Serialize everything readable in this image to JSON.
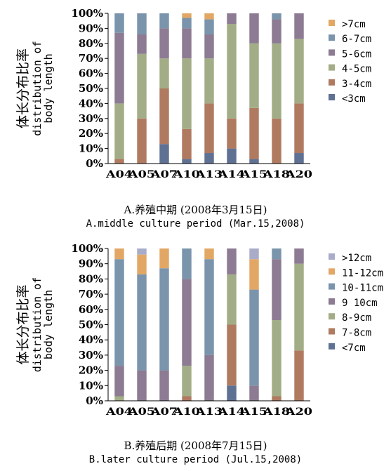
{
  "chart_data": [
    {
      "type": "bar",
      "stacked": true,
      "ylabel_cn": "体长分布比率",
      "ylabel_en_line1": "distribution of",
      "ylabel_en_line2": "body length",
      "yticks": [
        "0%",
        "10%",
        "20%",
        "30%",
        "40%",
        "50%",
        "60%",
        "70%",
        "80%",
        "90%",
        "100%"
      ],
      "ylim": [
        0,
        100
      ],
      "grid": false,
      "legend_position": "right",
      "caption_cn": "A.养殖中期 (2008年3月15日)",
      "caption_en": "A.middle culture period (Mar.15,2008)",
      "categories": [
        "A04",
        "A05",
        "A07",
        "A10",
        "A13",
        "A14",
        "A15",
        "A18",
        "A20"
      ],
      "series": [
        {
          "name": "<3cm",
          "color": "#5f7193",
          "values": [
            0,
            0,
            13,
            3,
            7,
            10,
            3,
            0,
            7
          ]
        },
        {
          "name": "3-4cm",
          "color": "#b07a61",
          "values": [
            3,
            30,
            37,
            20,
            33,
            20,
            34,
            30,
            33
          ]
        },
        {
          "name": "4-5cm",
          "color": "#a2ad87",
          "values": [
            37,
            43,
            20,
            47,
            30,
            63,
            43,
            50,
            43
          ]
        },
        {
          "name": "5-6cm",
          "color": "#8c7b92",
          "values": [
            47,
            13,
            20,
            20,
            16,
            7,
            20,
            16,
            17
          ]
        },
        {
          "name": "6-7cm",
          "color": "#7a94ac",
          "values": [
            13,
            14,
            10,
            7,
            10,
            0,
            0,
            4,
            0
          ]
        },
        {
          "name": ">7cm",
          "color": "#e3a765",
          "values": [
            0,
            0,
            0,
            3,
            4,
            0,
            0,
            0,
            0
          ]
        }
      ]
    },
    {
      "type": "bar",
      "stacked": true,
      "ylabel_cn": "体长分布比率",
      "ylabel_en_line1": "distribution of",
      "ylabel_en_line2": "body length",
      "yticks": [
        "0%",
        "10%",
        "20%",
        "30%",
        "40%",
        "50%",
        "60%",
        "70%",
        "80%",
        "90%",
        "100%"
      ],
      "ylim": [
        0,
        100
      ],
      "grid": false,
      "legend_position": "right",
      "caption_cn": "B.养殖后期 (2008年7月15日)",
      "caption_en": "B.later culture period (Jul.15,2008)",
      "categories": [
        "A04",
        "A05",
        "A07",
        "A10",
        "A13",
        "A14",
        "A15",
        "A18",
        "A20"
      ],
      "series": [
        {
          "name": "<7cm",
          "color": "#5f7193",
          "values": [
            0,
            0,
            0,
            0,
            0,
            10,
            0,
            0,
            0
          ]
        },
        {
          "name": "7-8cm",
          "color": "#b07a61",
          "values": [
            0,
            0,
            0,
            3,
            0,
            40,
            0,
            3,
            33
          ]
        },
        {
          "name": "8-9cm",
          "color": "#a2ad87",
          "values": [
            3,
            0,
            0,
            20,
            0,
            33,
            0,
            50,
            57
          ]
        },
        {
          "name": "9 10cm",
          "color": "#8c7b92",
          "values": [
            20,
            20,
            20,
            57,
            30,
            17,
            10,
            40,
            10
          ]
        },
        {
          "name": "10-11cm",
          "color": "#7a94ac",
          "values": [
            70,
            63,
            67,
            20,
            63,
            0,
            63,
            7,
            0
          ]
        },
        {
          "name": "11-12cm",
          "color": "#e3a765",
          "values": [
            7,
            13,
            13,
            0,
            7,
            0,
            20,
            0,
            0
          ]
        },
        {
          "name": ">12cm",
          "color": "#a9acc9",
          "values": [
            0,
            4,
            0,
            0,
            0,
            0,
            7,
            0,
            0
          ]
        }
      ]
    }
  ]
}
